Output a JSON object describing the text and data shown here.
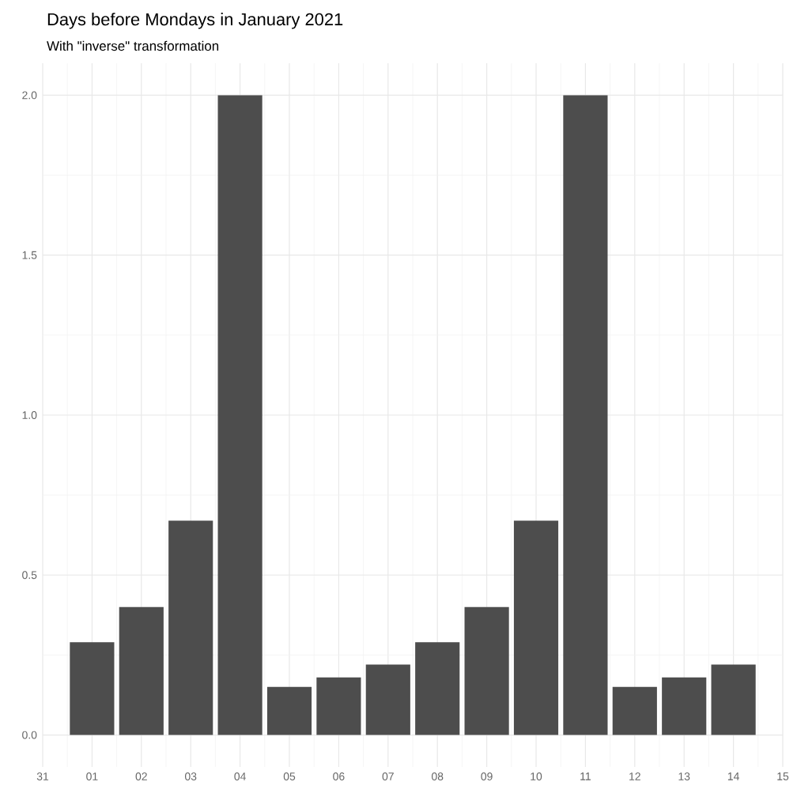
{
  "chart_data": {
    "type": "bar",
    "title": "Days before Mondays in January 2021",
    "subtitle": "With \"inverse\" transformation",
    "x": [
      "2021-01-01",
      "2021-01-02",
      "2021-01-03",
      "2021-01-04",
      "2021-01-05",
      "2021-01-06",
      "2021-01-07",
      "2021-01-08",
      "2021-01-09",
      "2021-01-10",
      "2021-01-11",
      "2021-01-12",
      "2021-01-13",
      "2021-01-14"
    ],
    "values": [
      0.29,
      0.4,
      0.67,
      2.0,
      0.15,
      0.18,
      0.22,
      0.29,
      0.4,
      0.67,
      2.0,
      0.15,
      0.18,
      0.22
    ],
    "color": "#4d4d4d",
    "xlim": [
      "2020-12-31",
      "2021-01-15"
    ],
    "xticks": [
      {
        "value": "2020-12-31",
        "label": "31"
      },
      {
        "value": "2021-01-01",
        "label": "01"
      },
      {
        "value": "2021-01-02",
        "label": "02"
      },
      {
        "value": "2021-01-03",
        "label": "03"
      },
      {
        "value": "2021-01-04",
        "label": "04"
      },
      {
        "value": "2021-01-05",
        "label": "05"
      },
      {
        "value": "2021-01-06",
        "label": "06"
      },
      {
        "value": "2021-01-07",
        "label": "07"
      },
      {
        "value": "2021-01-08",
        "label": "08"
      },
      {
        "value": "2021-01-09",
        "label": "09"
      },
      {
        "value": "2021-01-10",
        "label": "10"
      },
      {
        "value": "2021-01-11",
        "label": "11"
      },
      {
        "value": "2021-01-12",
        "label": "12"
      },
      {
        "value": "2021-01-13",
        "label": "13"
      },
      {
        "value": "2021-01-14",
        "label": "14"
      },
      {
        "value": "2021-01-15",
        "label": "15"
      }
    ],
    "ylim": [
      -0.1,
      2.1
    ],
    "yticks": [
      {
        "value": 0,
        "label": "0.0"
      },
      0.5,
      {
        "value": 1,
        "label": "1.0"
      },
      1.5,
      {
        "value": 2,
        "label": "2.0"
      }
    ],
    "grid": true
  }
}
